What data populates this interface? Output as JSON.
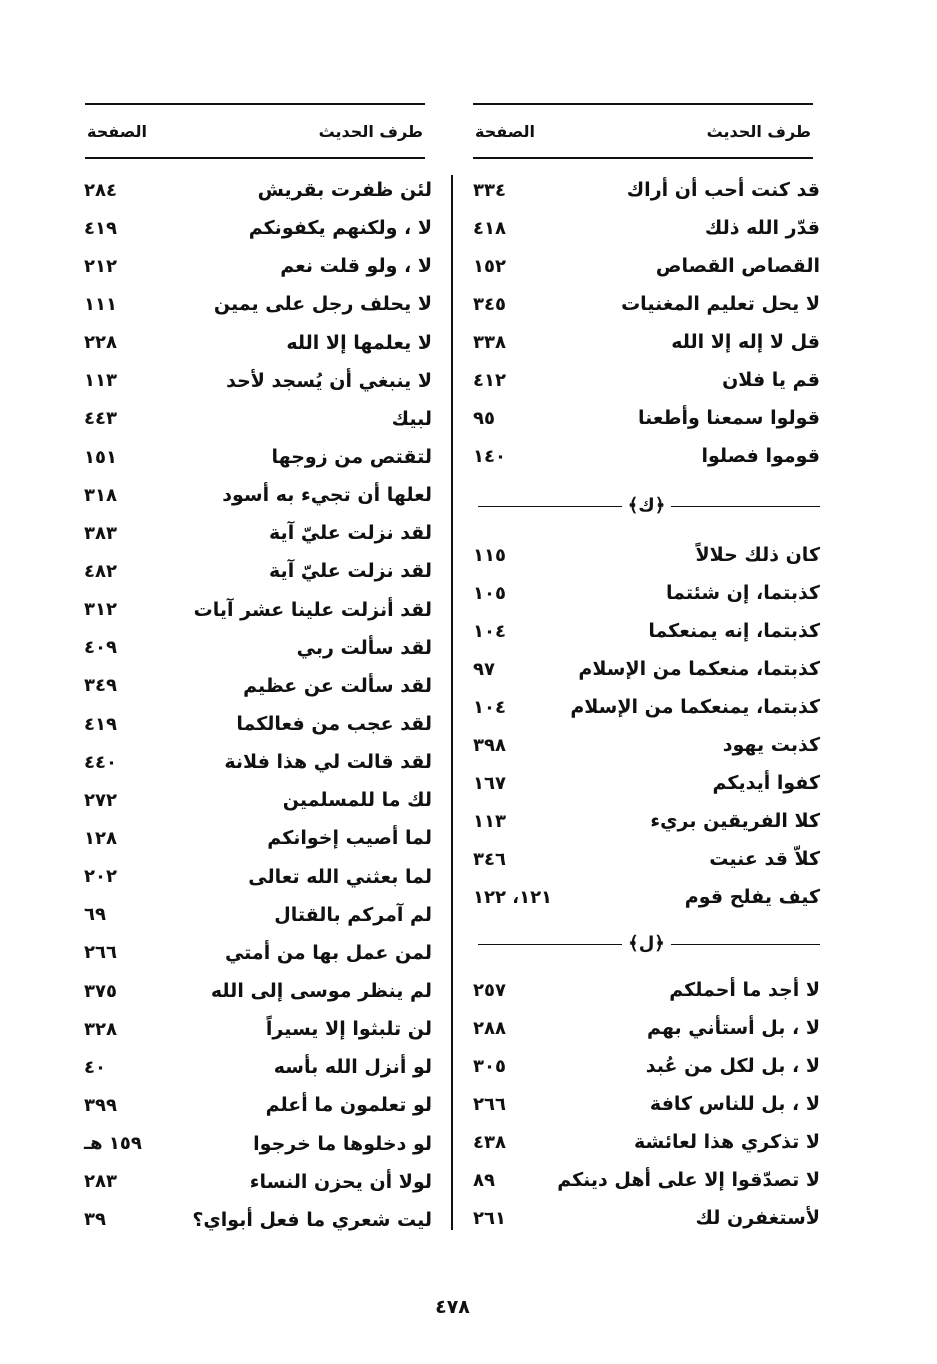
{
  "headers": {
    "hadith": "طرف الحديث",
    "page": "الصفحة"
  },
  "right_column": {
    "group1": [
      {
        "text": "قد كنت أحب أن أراك",
        "page": "٣٣٤"
      },
      {
        "text": "قدّر الله ذلك",
        "page": "٤١٨"
      },
      {
        "text": "القصاص القصاص",
        "page": "١٥٢"
      },
      {
        "text": "لا يحل تعليم المغنيات",
        "page": "٣٤٥"
      },
      {
        "text": "قل لا إله إلا الله",
        "page": "٣٣٨"
      },
      {
        "text": "قم يا فلان",
        "page": "٤١٢"
      },
      {
        "text": "قولوا سمعنا وأطعنا",
        "page": "٩٥"
      },
      {
        "text": "قوموا فصلوا",
        "page": "١٤٠"
      }
    ],
    "section_k": "﴿ك﴾",
    "group2": [
      {
        "text": "كان ذلك حلالاً",
        "page": "١١٥"
      },
      {
        "text": "كذبتما، إن شئتما",
        "page": "١٠٥"
      },
      {
        "text": "كذبتما، إنه يمنعكما",
        "page": "١٠٤"
      },
      {
        "text": "كذبتما، منعكما من الإسلام",
        "page": "٩٧"
      },
      {
        "text": "كذبتما، يمنعكما من الإسلام",
        "page": "١٠٤"
      },
      {
        "text": "كذبت يهود",
        "page": "٣٩٨"
      },
      {
        "text": "كفوا أيديكم",
        "page": "١٦٧"
      },
      {
        "text": "كلا الفريقين بريء",
        "page": "١١٣"
      },
      {
        "text": "كلاّ قد عنيت",
        "page": "٣٤٦"
      },
      {
        "text": "كيف يفلح قوم",
        "page": "١٢١، ١٢٢"
      }
    ],
    "section_l": "﴿ل﴾",
    "group3": [
      {
        "text": "لا أجد ما أحملكم",
        "page": "٢٥٧"
      },
      {
        "text": "لا ، بل أستأني بهم",
        "page": "٢٨٨"
      },
      {
        "text": "لا ، بل لكل من عُبد",
        "page": "٣٠٥"
      },
      {
        "text": "لا ، بل للناس كافة",
        "page": "٢٦٦"
      },
      {
        "text": "لا تذكري هذا لعائشة",
        "page": "٤٣٨"
      },
      {
        "text": "لا تصدّقوا إلا على أهل دينكم",
        "page": "٨٩"
      },
      {
        "text": "لأستغفرن لك",
        "page": "٢٦١"
      }
    ]
  },
  "left_column": [
    {
      "text": "لئن ظفرت بقريش",
      "page": "٢٨٤"
    },
    {
      "text": "لا ، ولكنهم يكفونكم",
      "page": "٤١٩"
    },
    {
      "text": "لا ، ولو قلت نعم",
      "page": "٢١٢"
    },
    {
      "text": "لا يحلف رجل على يمين",
      "page": "١١١"
    },
    {
      "text": "لا يعلمها إلا الله",
      "page": "٢٢٨"
    },
    {
      "text": "لا ينبغي أن يُسجد لأحد",
      "page": "١١٣"
    },
    {
      "text": "لبيك",
      "page": "٤٤٣"
    },
    {
      "text": "لتقتص من زوجها",
      "page": "١٥١"
    },
    {
      "text": "لعلها أن تجيء به أسود",
      "page": "٣١٨"
    },
    {
      "text": "لقد نزلت عليّ آية",
      "page": "٣٨٣"
    },
    {
      "text": "لقد نزلت عليّ آية",
      "page": "٤٨٢"
    },
    {
      "text": "لقد أنزلت علينا عشر آيات",
      "page": "٣١٢"
    },
    {
      "text": "لقد سألت ربي",
      "page": "٤٠٩"
    },
    {
      "text": "لقد سألت عن عظيم",
      "page": "٣٤٩"
    },
    {
      "text": "لقد عجب من فعالكما",
      "page": "٤١٩"
    },
    {
      "text": "لقد قالت لي هذا فلانة",
      "page": "٤٤٠"
    },
    {
      "text": "لك ما للمسلمين",
      "page": "٢٧٢"
    },
    {
      "text": "لما أصيب إخوانكم",
      "page": "١٢٨"
    },
    {
      "text": "لما بعثني الله تعالى",
      "page": "٢٠٢"
    },
    {
      "text": "لم آمركم بالقتال",
      "page": "٦٩"
    },
    {
      "text": "لمن عمل بها من أمتي",
      "page": "٢٦٦"
    },
    {
      "text": "لم ينظر موسى إلى الله",
      "page": "٣٧٥"
    },
    {
      "text": "لن تلبثوا إلا يسيراً",
      "page": "٣٢٨"
    },
    {
      "text": "لو أنزل الله بأسه",
      "page": "٤٠"
    },
    {
      "text": "لو تعلمون ما أعلم",
      "page": "٣٩٩"
    },
    {
      "text": "لو دخلوها ما خرجوا",
      "page": "١٥٩ هـ"
    },
    {
      "text": "لولا أن يحزن النساء",
      "page": "٢٨٣"
    },
    {
      "text": "ليت شعري ما فعل أبواي؟",
      "page": "٣٩"
    }
  ],
  "page_number": "٤٧٨"
}
